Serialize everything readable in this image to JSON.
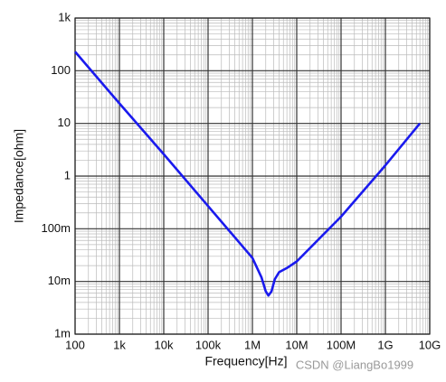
{
  "chart_data": {
    "type": "line",
    "x_label": "Frequency[Hz]",
    "y_label": "Impedance[ohm]",
    "watermark": "CSDN @LiangBo1999",
    "log_x": true,
    "log_y": true,
    "grid": true,
    "minor_grid": true,
    "xlim": [
      100,
      10000000000
    ],
    "ylim": [
      0.001,
      1000
    ],
    "xticks": [
      100,
      {
        "value": 1000,
        "label": "1k"
      },
      {
        "value": 10000,
        "label": "10k"
      },
      {
        "value": 100000,
        "label": "100k"
      },
      {
        "value": 1000000,
        "label": "1M"
      },
      {
        "value": 10000000,
        "label": "10M"
      },
      {
        "value": 100000000,
        "label": "100M"
      },
      {
        "value": 1000000000,
        "label": "1G"
      },
      {
        "value": 10000000000,
        "label": "10G"
      }
    ],
    "yticks": [
      {
        "value": 0.001,
        "label": "1m"
      },
      {
        "value": 0.01,
        "label": "10m"
      },
      {
        "value": 0.1,
        "label": "100m"
      },
      1,
      10,
      100,
      {
        "value": 1000,
        "label": "1k"
      }
    ],
    "x": [
      100,
      1000,
      10000,
      100000,
      1000000,
      1600000,
      2000000,
      2300000,
      2700000,
      3200000,
      4000000,
      6000000,
      10000000,
      100000000,
      1000000000,
      6000000000
    ],
    "series": [
      {
        "color": "#1a1aee",
        "values": [
          230,
          24,
          2.6,
          0.27,
          0.028,
          0.012,
          0.0065,
          0.0054,
          0.0065,
          0.011,
          0.015,
          0.018,
          0.024,
          0.17,
          1.6,
          10
        ]
      }
    ]
  }
}
